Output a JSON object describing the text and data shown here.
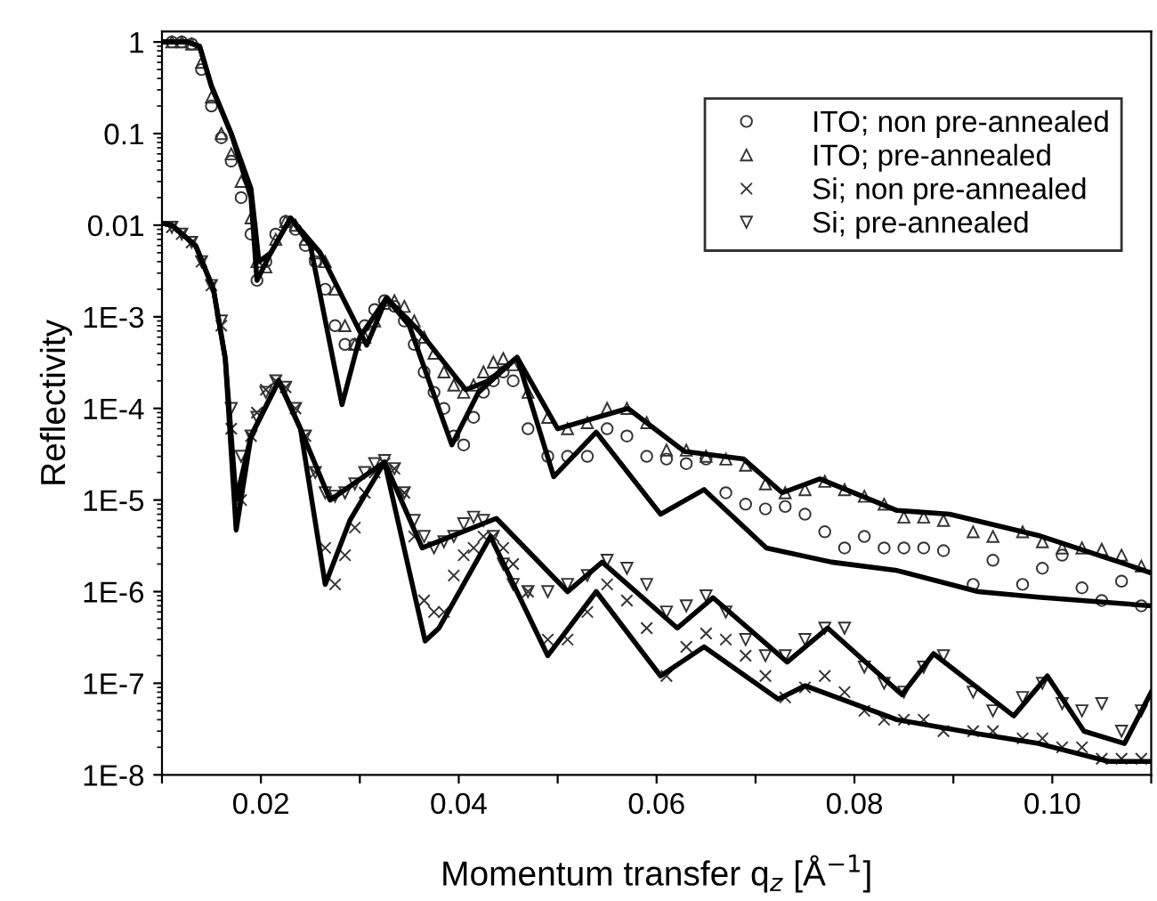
{
  "chart_data": {
    "type": "scatter",
    "xlabel": "Momentum transfer q$_{z}$ [Å$^{−1}$]",
    "ylabel": "Reflectivity",
    "log": "y",
    "legend": "top right",
    "grid": false,
    "xlim": [
      0.01,
      0.11
    ],
    "xticks": [
      {
        "value": 0.01,
        "label": null
      },
      0.02,
      {
        "value": 0.03,
        "label": null
      },
      0.04,
      {
        "value": 0.05,
        "label": null
      },
      0.06,
      {
        "value": 0.07,
        "label": null
      },
      0.08,
      {
        "value": 0.09,
        "label": null
      },
      {
        "value": 0.1,
        "label": "0.10"
      },
      {
        "value": 0.11,
        "label": null
      }
    ],
    "ylim": [
      1e-08,
      1.3
    ],
    "yticks": [
      {
        "value": 1e-08,
        "label": "1E-8"
      },
      {
        "value": 1e-07,
        "label": "1E-7"
      },
      {
        "value": 1e-06,
        "label": "1E-6"
      },
      {
        "value": 1e-05,
        "label": "1E-5"
      },
      {
        "value": 0.0001,
        "label": "1E-4"
      },
      {
        "value": 0.001,
        "label": "1E-3"
      },
      0.01,
      0.1,
      1
    ],
    "x": [
      0.011,
      0.012,
      0.013,
      0.014,
      0.015,
      0.016,
      0.017,
      0.018,
      0.019,
      0.0196,
      0.0205,
      0.0215,
      0.0225,
      0.0235,
      0.0245,
      0.0255,
      0.0265,
      0.0275,
      0.0285,
      0.0295,
      0.0305,
      0.0315,
      0.0325,
      0.0335,
      0.0345,
      0.0355,
      0.0365,
      0.0375,
      0.0385,
      0.0395,
      0.0405,
      0.0415,
      0.0425,
      0.0435,
      0.0445,
      0.0455,
      0.047,
      0.049,
      0.051,
      0.053,
      0.055,
      0.057,
      0.059,
      0.061,
      0.063,
      0.065,
      0.067,
      0.069,
      0.071,
      0.073,
      0.075,
      0.077,
      0.079,
      0.081,
      0.083,
      0.085,
      0.087,
      0.089,
      0.092,
      0.094,
      0.097,
      0.099,
      0.101,
      0.103,
      0.105,
      0.107,
      0.109
    ],
    "series": [
      {
        "name": "ITO; non pre-annealed",
        "marker": "circle",
        "color": "#333333",
        "values": [
          1,
          1,
          0.95,
          0.5,
          0.2,
          0.09,
          0.05,
          0.02,
          0.008,
          0.0025,
          0.004,
          0.008,
          0.011,
          0.009,
          0.006,
          0.004,
          0.002,
          0.0008,
          0.0005,
          0.0005,
          0.0008,
          0.0012,
          0.0015,
          0.0013,
          0.0009,
          0.0005,
          0.00025,
          0.00015,
          0.0001,
          5e-05,
          4e-05,
          8e-05,
          0.00015,
          0.0002,
          0.00025,
          0.0002,
          6e-05,
          3e-05,
          3e-05,
          3e-05,
          6e-05,
          5e-05,
          3e-05,
          2.8e-05,
          2.5e-05,
          2.8e-05,
          1.2e-05,
          9e-06,
          8e-06,
          8.5e-06,
          7e-06,
          4.5e-06,
          3e-06,
          4e-06,
          3e-06,
          3e-06,
          3e-06,
          2.8e-06,
          1.2e-06,
          2.2e-06,
          1.2e-06,
          1.8e-06,
          2.5e-06,
          1.1e-06,
          8e-07,
          1.3e-06,
          7e-07
        ]
      },
      {
        "name": "ITO; pre-annealed",
        "marker": "triangle",
        "color": "#333333",
        "values": [
          1,
          1,
          0.95,
          0.6,
          0.25,
          0.1,
          0.06,
          0.03,
          0.012,
          0.004,
          0.0035,
          0.007,
          0.011,
          0.01,
          0.007,
          0.005,
          0.004,
          0.002,
          0.0008,
          0.0005,
          0.0006,
          0.0009,
          0.0014,
          0.0015,
          0.0013,
          0.0009,
          0.0006,
          0.0004,
          0.00025,
          0.00018,
          0.00015,
          0.00018,
          0.00025,
          0.00032,
          0.00035,
          0.0003,
          0.00015,
          8e-05,
          6e-05,
          7e-05,
          0.0001,
          0.0001,
          7e-05,
          3.5e-05,
          3.5e-05,
          3e-05,
          2.8e-05,
          2.4e-05,
          1.5e-05,
          1.2e-05,
          1.3e-05,
          1.6e-05,
          1.3e-05,
          1.1e-05,
          9e-06,
          6.5e-06,
          6.5e-06,
          6e-06,
          4.5e-06,
          4e-06,
          4.5e-06,
          3.5e-06,
          3e-06,
          3e-06,
          2.9e-06,
          2.5e-06,
          1.9e-06
        ]
      },
      {
        "name": "Si; non pre-annealed",
        "marker": "cross",
        "color": "#333333",
        "values": [
          0.0095,
          0.008,
          0.0065,
          0.004,
          0.0022,
          0.0008,
          6e-05,
          1e-05,
          5e-05,
          9e-05,
          0.00016,
          0.0002,
          0.00017,
          0.0001,
          5e-05,
          2e-05,
          3e-06,
          1.2e-06,
          2.5e-06,
          5e-06,
          1.2e-05,
          2e-05,
          2.5e-05,
          2.2e-05,
          1.2e-05,
          4e-06,
          8e-07,
          6e-07,
          6e-07,
          1.5e-06,
          2.5e-06,
          3e-06,
          4e-06,
          4e-06,
          3e-06,
          2e-06,
          1e-06,
          3e-07,
          3e-07,
          6e-07,
          1.2e-06,
          8e-07,
          4e-07,
          1.2e-07,
          2.5e-07,
          3.5e-07,
          3e-07,
          2e-07,
          1.2e-07,
          7e-08,
          9e-08,
          1.2e-07,
          8e-08,
          5e-08,
          4e-08,
          4e-08,
          4e-08,
          3e-08,
          3e-08,
          3e-08,
          2.5e-08,
          2.5e-08,
          2e-08,
          2e-08,
          1.5e-08,
          1.5e-08,
          1.5e-08
        ]
      },
      {
        "name": "Si; pre-annealed",
        "marker": "triangle_down",
        "color": "#333333",
        "values": [
          0.0095,
          0.008,
          0.0065,
          0.004,
          0.0022,
          0.0009,
          0.0001,
          3e-05,
          5e-05,
          8e-05,
          0.00015,
          0.0002,
          0.00017,
          0.0001,
          5e-05,
          2e-05,
          1.2e-05,
          1.1e-05,
          1.2e-05,
          1.5e-05,
          2e-05,
          2.5e-05,
          2.7e-05,
          2.2e-05,
          1.2e-05,
          6e-06,
          4e-06,
          3e-06,
          3.5e-06,
          4e-06,
          5.5e-06,
          6.5e-06,
          6e-06,
          4e-06,
          2e-06,
          1.2e-06,
          1e-06,
          1e-06,
          1.2e-06,
          1.5e-06,
          2.2e-06,
          1.8e-06,
          1.2e-06,
          6e-07,
          7e-07,
          9e-07,
          6e-07,
          3e-07,
          2e-07,
          2e-07,
          3e-07,
          4e-07,
          4e-07,
          1.5e-07,
          1e-07,
          8e-08,
          1.5e-07,
          2e-07,
          8e-08,
          5e-08,
          7e-08,
          1e-07,
          6e-08,
          5e-08,
          6e-08,
          3e-08,
          5e-08
        ]
      },
      {
        "type": "line",
        "color": "#000000",
        "x": [
          0.01,
          0.0125,
          0.0138,
          0.015,
          0.017,
          0.019,
          0.0196,
          0.021,
          0.023,
          0.025,
          0.0282,
          0.03,
          0.0327,
          0.035,
          0.0393,
          0.042,
          0.0459,
          0.0496,
          0.0539,
          0.0604,
          0.0648,
          0.0711,
          0.0777,
          0.0843,
          0.0925,
          0.0986,
          0.11
        ],
        "values": [
          1,
          1,
          0.9,
          0.33,
          0.1,
          0.02,
          0.0025,
          0.005,
          0.012,
          0.006,
          0.00011,
          0.0006,
          0.0016,
          0.0008,
          4e-05,
          0.00015,
          0.00036,
          1.8e-05,
          5.5e-05,
          7e-06,
          1.3e-05,
          3e-06,
          2.1e-06,
          1.7e-06,
          1e-06,
          8.7e-07,
          7e-07
        ]
      },
      {
        "type": "line",
        "color": "#000000",
        "x": [
          0.01,
          0.0125,
          0.0138,
          0.015,
          0.017,
          0.019,
          0.0198,
          0.021,
          0.023,
          0.026,
          0.0307,
          0.0327,
          0.036,
          0.0407,
          0.043,
          0.0459,
          0.05,
          0.0571,
          0.0628,
          0.0688,
          0.0727,
          0.0765,
          0.0843,
          0.0896,
          0.0986,
          0.1068,
          0.11
        ],
        "values": [
          1,
          1,
          0.9,
          0.33,
          0.1,
          0.025,
          0.004,
          0.005,
          0.012,
          0.005,
          0.00049,
          0.0016,
          0.0007,
          0.00016,
          0.0002,
          0.00036,
          6e-05,
          0.0001,
          3.4e-05,
          2.8e-05,
          1.2e-05,
          1.7e-05,
          7.7e-06,
          7e-06,
          4.1e-06,
          2.1e-06,
          1.6e-06
        ]
      },
      {
        "type": "line",
        "color": "#000000",
        "x": [
          0.01,
          0.011,
          0.0134,
          0.0152,
          0.0164,
          0.0175,
          0.019,
          0.0218,
          0.024,
          0.0265,
          0.029,
          0.0325,
          0.0366,
          0.038,
          0.0432,
          0.049,
          0.0539,
          0.0604,
          0.0648,
          0.0723,
          0.075,
          0.0843,
          0.0925,
          0.0986,
          0.1057,
          0.11
        ],
        "values": [
          0.0105,
          0.01,
          0.006,
          0.002,
          0.00035,
          4.7e-06,
          5e-05,
          0.0002,
          6e-05,
          1.2e-06,
          6e-06,
          2.6e-05,
          2.9e-07,
          4e-07,
          4e-06,
          2e-07,
          1e-06,
          1.2e-07,
          2.5e-07,
          6.7e-08,
          9.4e-08,
          4e-08,
          2.8e-08,
          2.2e-08,
          1.4e-08,
          1.4e-08
        ]
      },
      {
        "type": "line",
        "color": "#000000",
        "x": [
          0.01,
          0.011,
          0.0134,
          0.0152,
          0.0164,
          0.0175,
          0.019,
          0.0218,
          0.024,
          0.027,
          0.0325,
          0.0363,
          0.0438,
          0.051,
          0.0545,
          0.0621,
          0.0657,
          0.0732,
          0.0773,
          0.0848,
          0.088,
          0.0961,
          0.0995,
          0.1032,
          0.1073,
          0.11
        ],
        "values": [
          0.0105,
          0.01,
          0.006,
          0.002,
          0.00035,
          1e-05,
          5e-05,
          0.0002,
          6e-05,
          1e-05,
          2.6e-05,
          3e-06,
          6.3e-06,
          1e-06,
          2.1e-06,
          4e-07,
          8.6e-07,
          1.7e-07,
          4e-07,
          7.5e-08,
          2.1e-07,
          4.4e-08,
          1.2e-07,
          3e-08,
          2.2e-08,
          8e-08
        ]
      }
    ]
  }
}
